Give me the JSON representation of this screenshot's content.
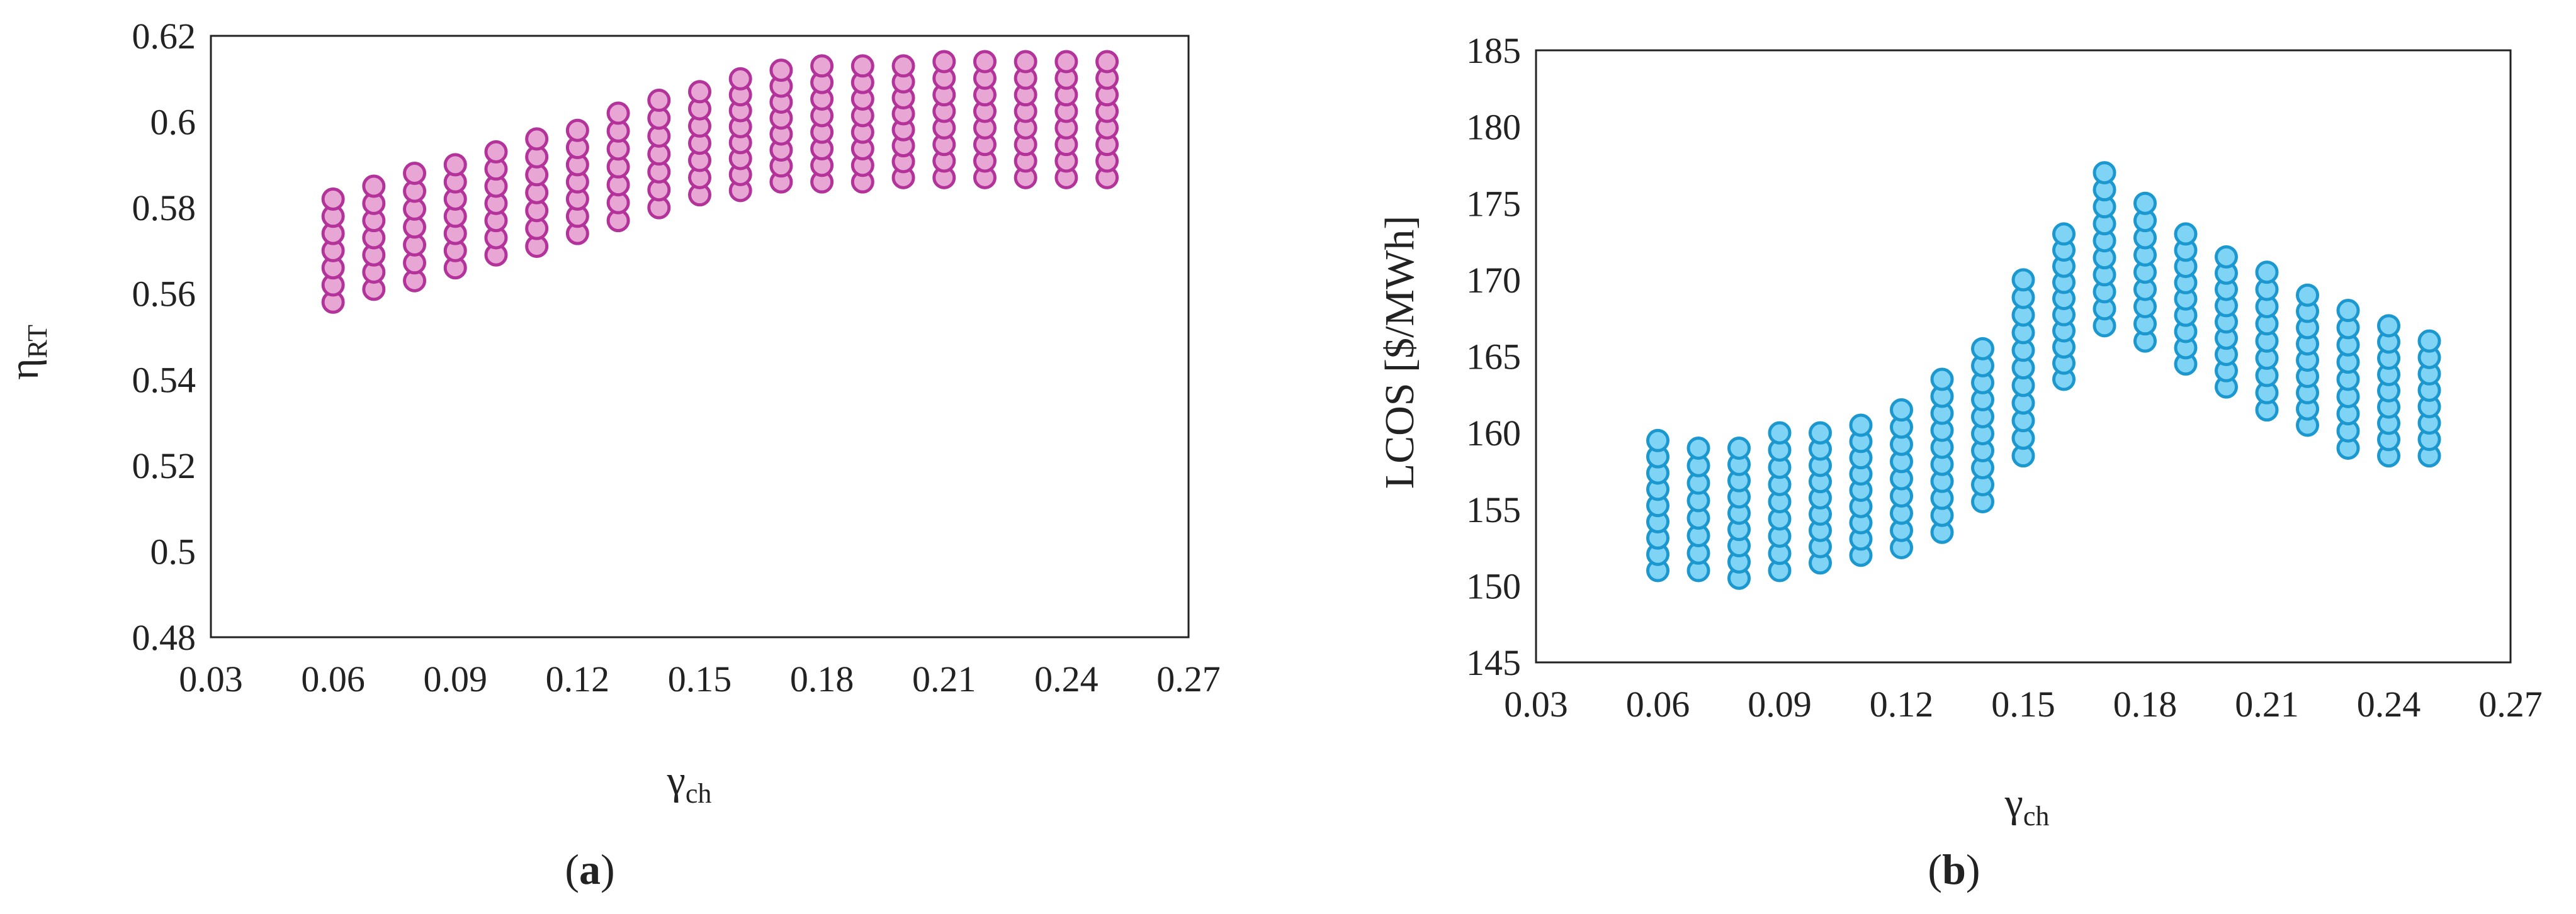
{
  "colors": {
    "series_a_fill": "#e8a6d4",
    "series_a_stroke": "#b3339b",
    "series_b_fill": "#7fd3f5",
    "series_b_stroke": "#1a98cf",
    "frame": "#222222"
  },
  "chart_data": [
    {
      "type": "scatter",
      "panel_label": {
        "open": "(",
        "letter": "a",
        "close": ")"
      },
      "title": "",
      "xlabel": {
        "base": "γ",
        "sub": "ch"
      },
      "ylabel": {
        "base": "η",
        "sub": "RT"
      },
      "xlim": [
        0.03,
        0.27
      ],
      "ylim": [
        0.48,
        0.62
      ],
      "xticks": [
        "0.03",
        "0.06",
        "0.09",
        "0.12",
        "0.15",
        "0.18",
        "0.21",
        "0.24",
        "0.27"
      ],
      "yticks": [
        "0.48",
        "0.5",
        "0.52",
        "0.54",
        "0.56",
        "0.58",
        "0.6",
        "0.62"
      ],
      "grid": false,
      "legend": "none",
      "series": [
        {
          "columns": [
            {
              "x": 0.06,
              "y_min": 0.558,
              "y_max": 0.582
            },
            {
              "x": 0.07,
              "y_min": 0.561,
              "y_max": 0.585
            },
            {
              "x": 0.08,
              "y_min": 0.563,
              "y_max": 0.588
            },
            {
              "x": 0.09,
              "y_min": 0.566,
              "y_max": 0.59
            },
            {
              "x": 0.1,
              "y_min": 0.569,
              "y_max": 0.593
            },
            {
              "x": 0.11,
              "y_min": 0.571,
              "y_max": 0.596
            },
            {
              "x": 0.12,
              "y_min": 0.574,
              "y_max": 0.598
            },
            {
              "x": 0.13,
              "y_min": 0.577,
              "y_max": 0.602
            },
            {
              "x": 0.14,
              "y_min": 0.58,
              "y_max": 0.605
            },
            {
              "x": 0.15,
              "y_min": 0.583,
              "y_max": 0.607
            },
            {
              "x": 0.16,
              "y_min": 0.584,
              "y_max": 0.61
            },
            {
              "x": 0.17,
              "y_min": 0.586,
              "y_max": 0.612
            },
            {
              "x": 0.18,
              "y_min": 0.586,
              "y_max": 0.613
            },
            {
              "x": 0.19,
              "y_min": 0.586,
              "y_max": 0.613
            },
            {
              "x": 0.2,
              "y_min": 0.587,
              "y_max": 0.613
            },
            {
              "x": 0.21,
              "y_min": 0.587,
              "y_max": 0.614
            },
            {
              "x": 0.22,
              "y_min": 0.587,
              "y_max": 0.614
            },
            {
              "x": 0.23,
              "y_min": 0.587,
              "y_max": 0.614
            },
            {
              "x": 0.24,
              "y_min": 0.587,
              "y_max": 0.614
            },
            {
              "x": 0.25,
              "y_min": 0.587,
              "y_max": 0.614
            }
          ]
        }
      ]
    },
    {
      "type": "scatter",
      "panel_label": {
        "open": "(",
        "letter": "b",
        "close": ")"
      },
      "title": "",
      "xlabel": {
        "base": "γ",
        "sub": "ch"
      },
      "ylabel": {
        "base": "LCOS [$/MWh]",
        "sub": ""
      },
      "xlim": [
        0.03,
        0.27
      ],
      "ylim": [
        145,
        185
      ],
      "xticks": [
        "0.03",
        "0.06",
        "0.09",
        "0.12",
        "0.15",
        "0.18",
        "0.21",
        "0.24",
        "0.27"
      ],
      "yticks": [
        "145",
        "150",
        "155",
        "160",
        "165",
        "170",
        "175",
        "180",
        "185"
      ],
      "grid": false,
      "legend": "none",
      "series": [
        {
          "columns": [
            {
              "x": 0.06,
              "y_min": 151.0,
              "y_max": 159.5
            },
            {
              "x": 0.07,
              "y_min": 151.0,
              "y_max": 159.0
            },
            {
              "x": 0.08,
              "y_min": 150.5,
              "y_max": 159.0
            },
            {
              "x": 0.09,
              "y_min": 151.0,
              "y_max": 160.0
            },
            {
              "x": 0.1,
              "y_min": 151.5,
              "y_max": 160.0
            },
            {
              "x": 0.11,
              "y_min": 152.0,
              "y_max": 160.5
            },
            {
              "x": 0.12,
              "y_min": 152.5,
              "y_max": 161.5
            },
            {
              "x": 0.13,
              "y_min": 153.5,
              "y_max": 163.5
            },
            {
              "x": 0.14,
              "y_min": 155.5,
              "y_max": 165.5
            },
            {
              "x": 0.15,
              "y_min": 158.5,
              "y_max": 170.0
            },
            {
              "x": 0.16,
              "y_min": 163.5,
              "y_max": 173.0
            },
            {
              "x": 0.17,
              "y_min": 167.0,
              "y_max": 177.0
            },
            {
              "x": 0.18,
              "y_min": 166.0,
              "y_max": 175.0
            },
            {
              "x": 0.19,
              "y_min": 164.5,
              "y_max": 173.0
            },
            {
              "x": 0.2,
              "y_min": 163.0,
              "y_max": 171.5
            },
            {
              "x": 0.21,
              "y_min": 161.5,
              "y_max": 170.5
            },
            {
              "x": 0.22,
              "y_min": 160.5,
              "y_max": 169.0
            },
            {
              "x": 0.23,
              "y_min": 159.0,
              "y_max": 168.0
            },
            {
              "x": 0.24,
              "y_min": 158.5,
              "y_max": 167.0
            },
            {
              "x": 0.25,
              "y_min": 158.5,
              "y_max": 166.0
            }
          ]
        }
      ]
    }
  ]
}
